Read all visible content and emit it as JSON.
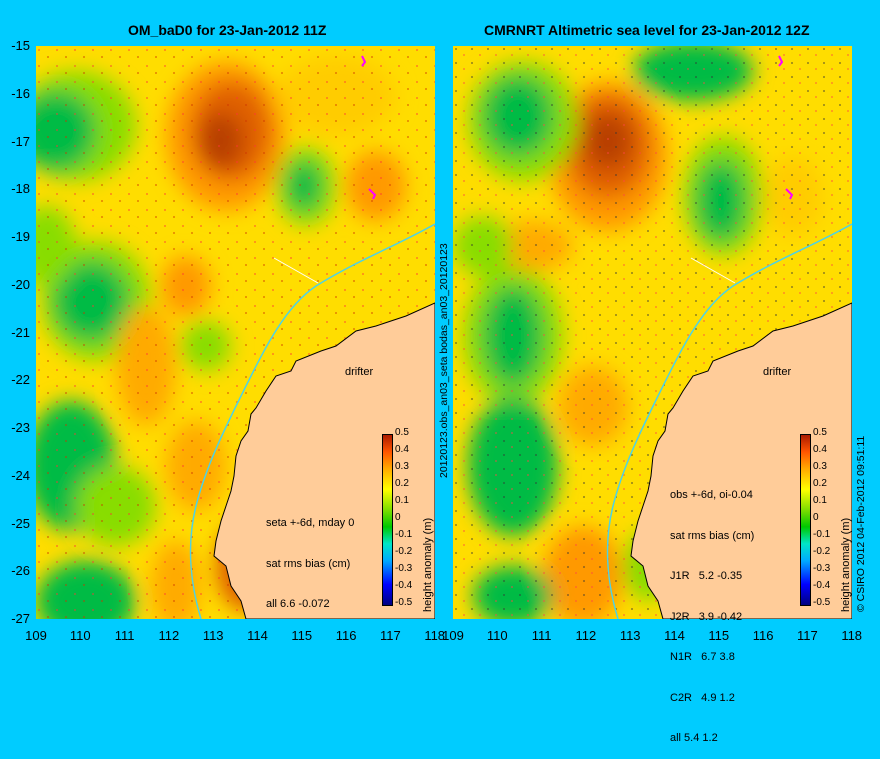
{
  "left": {
    "title": "OM_baD0 for 23-Jan-2012 11Z",
    "info": [
      "seta +-6d, mday 0",
      "sat rms bias (cm)",
      "all 6.6 -0.072"
    ],
    "drifter": "drifter"
  },
  "right": {
    "title": "CMRNRT Altimetric sea level  for 23-Jan-2012 12Z",
    "info": [
      "obs +-6d, oi-0.04",
      "sat rms bias (cm)",
      "J1R   5.2 -0.35",
      "J2R   3.9 -0.42",
      "N1R   6.7 3.8",
      "C2R   4.9 1.2",
      "all 5.4 1.2"
    ],
    "drifter": "drifter"
  },
  "yaxis": [
    "-15",
    "-16",
    "-17",
    "-18",
    "-19",
    "-20",
    "-21",
    "-22",
    "-23",
    "-24",
    "-25",
    "-26",
    "-27"
  ],
  "xaxis": [
    "109",
    "110",
    "111",
    "112",
    "113",
    "114",
    "115",
    "116",
    "117",
    "118"
  ],
  "colorbar": {
    "ticks": [
      "0.5",
      "0.4",
      "0.3",
      "0.2",
      "0.1",
      "0",
      "-0.1",
      "-0.2",
      "-0.3",
      "-0.4",
      "-0.5"
    ],
    "label": "height anomaly (m)"
  },
  "middle_label": "20120123.obs_an03_seta   bodas_an03_20120123",
  "credit": "© CSIRO 2012  04-Feb-2012 09:51:11",
  "colors": {
    "background": "#00ccff",
    "land": "#ffcc99",
    "coast": "#4dd2e6"
  }
}
